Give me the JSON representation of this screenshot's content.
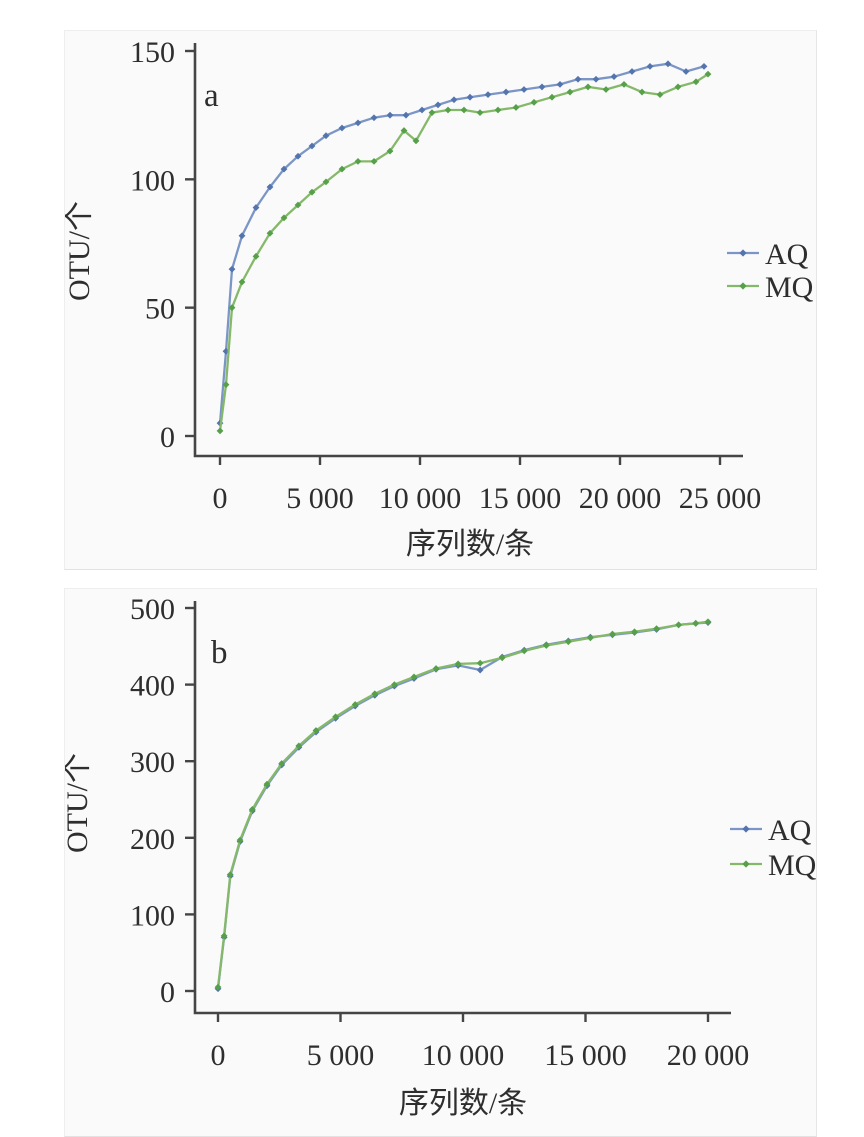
{
  "page": {
    "background": "#ffffff",
    "panel_background": "#fafafa",
    "panel_border": "#eeeeee"
  },
  "colors": {
    "axis": "#454545",
    "text": "#2e2e2e",
    "aq_line": "#7b96c6",
    "aq_marker": "#5374ad",
    "mq_line": "#85b969",
    "mq_marker": "#56a04a"
  },
  "chart_data": [
    {
      "type": "line",
      "panel_label": "a",
      "xlabel": "序列数/条",
      "ylabel": "OTU/个",
      "xlim": [
        0,
        25000
      ],
      "ylim": [
        0,
        150
      ],
      "grid": false,
      "legend_position": "right-middle",
      "xticks": [
        0,
        5000,
        10000,
        15000,
        20000,
        25000
      ],
      "xtick_labels": [
        "0",
        "5 000",
        "10 000",
        "15 000",
        "20 000",
        "25 000"
      ],
      "yticks": [
        0,
        50,
        100,
        150
      ],
      "ytick_labels": [
        "0",
        "50",
        "100",
        "150"
      ],
      "series": [
        {
          "name": "AQ",
          "color": "#7b96c6",
          "marker_color": "#5374ad",
          "x": [
            1,
            300,
            600,
            1100,
            1800,
            2500,
            3200,
            3900,
            4600,
            5300,
            6100,
            6900,
            7700,
            8500,
            9300,
            10100,
            10900,
            11700,
            12500,
            13400,
            14300,
            15200,
            16100,
            17000,
            17900,
            18800,
            19700,
            20600,
            21500,
            22400,
            23300,
            24200
          ],
          "y": [
            5,
            33,
            65,
            78,
            89,
            97,
            104,
            109,
            113,
            117,
            120,
            122,
            124,
            125,
            125,
            127,
            129,
            131,
            132,
            133,
            134,
            135,
            136,
            137,
            139,
            139,
            140,
            142,
            144,
            145,
            142,
            144
          ]
        },
        {
          "name": "MQ",
          "color": "#85b969",
          "marker_color": "#56a04a",
          "x": [
            1,
            300,
            600,
            1100,
            1800,
            2500,
            3200,
            3900,
            4600,
            5300,
            6100,
            6900,
            7700,
            8500,
            9200,
            9800,
            10600,
            11400,
            12200,
            13000,
            13900,
            14800,
            15700,
            16600,
            17500,
            18400,
            19300,
            20200,
            21100,
            22000,
            22900,
            23800,
            24400
          ],
          "y": [
            2,
            20,
            50,
            60,
            70,
            79,
            85,
            90,
            95,
            99,
            104,
            107,
            107,
            111,
            119,
            115,
            126,
            127,
            127,
            126,
            127,
            128,
            130,
            132,
            134,
            136,
            135,
            137,
            134,
            133,
            136,
            138,
            141
          ]
        }
      ]
    },
    {
      "type": "line",
      "panel_label": "b",
      "xlabel": "序列数/条",
      "ylabel": "OTU/个",
      "xlim": [
        0,
        20000
      ],
      "ylim": [
        0,
        500
      ],
      "grid": false,
      "legend_position": "right-middle",
      "xticks": [
        0,
        5000,
        10000,
        15000,
        20000
      ],
      "xtick_labels": [
        "0",
        "5 000",
        "10 000",
        "15 000",
        "20 000"
      ],
      "yticks": [
        0,
        100,
        200,
        300,
        400,
        500
      ],
      "ytick_labels": [
        "0",
        "100",
        "200",
        "300",
        "400",
        "500"
      ],
      "series": [
        {
          "name": "AQ",
          "color": "#7b96c6",
          "marker_color": "#5374ad",
          "x": [
            1,
            250,
            500,
            900,
            1400,
            2000,
            2600,
            3300,
            4000,
            4800,
            5600,
            6400,
            7200,
            8000,
            8900,
            9800,
            10700,
            11600,
            12500,
            13400,
            14300,
            15200,
            16100,
            17000,
            17900,
            18800,
            19500,
            20000
          ],
          "y": [
            3,
            70,
            150,
            195,
            235,
            268,
            295,
            318,
            338,
            356,
            372,
            386,
            398,
            408,
            420,
            425,
            419,
            436,
            445,
            452,
            457,
            462,
            465,
            468,
            472,
            478,
            480,
            481
          ]
        },
        {
          "name": "MQ",
          "color": "#85b969",
          "marker_color": "#56a04a",
          "x": [
            1,
            250,
            500,
            900,
            1400,
            2000,
            2600,
            3300,
            4000,
            4800,
            5600,
            6400,
            7200,
            8000,
            8900,
            9800,
            10700,
            11600,
            12500,
            13400,
            14300,
            15200,
            16100,
            17000,
            17900,
            18800,
            19500,
            20000
          ],
          "y": [
            5,
            72,
            152,
            197,
            237,
            270,
            297,
            320,
            340,
            358,
            374,
            388,
            400,
            410,
            421,
            427,
            428,
            435,
            444,
            451,
            456,
            461,
            466,
            469,
            473,
            478,
            480,
            482
          ]
        }
      ]
    }
  ]
}
